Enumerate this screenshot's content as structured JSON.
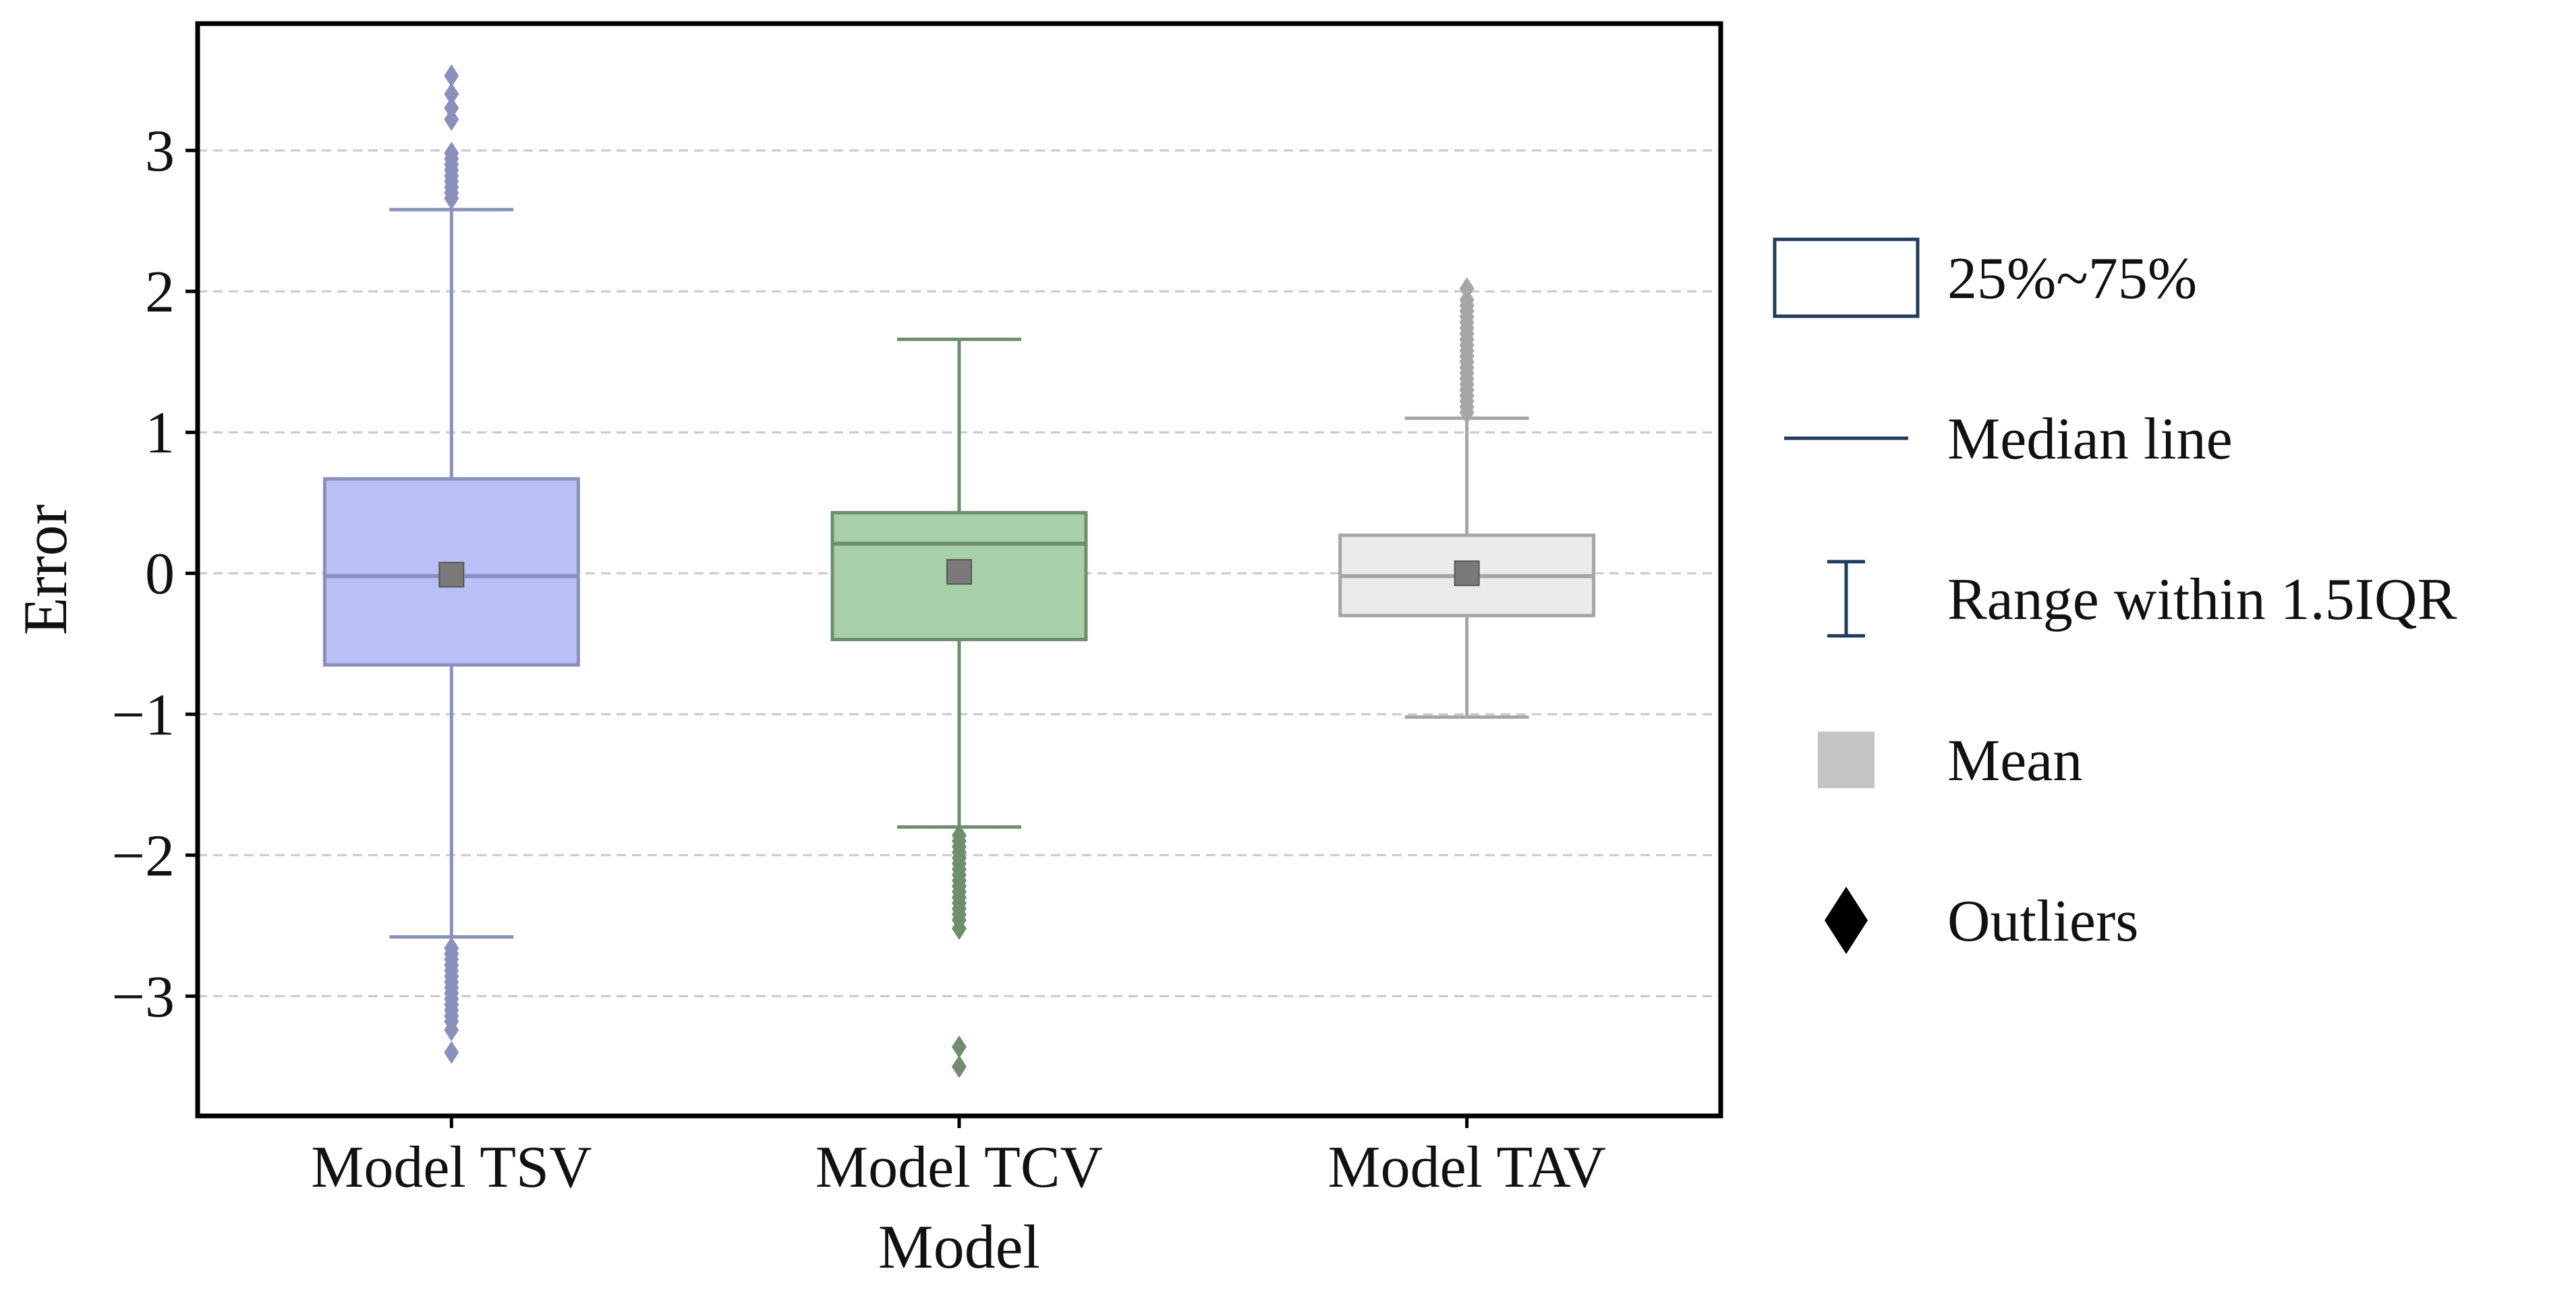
{
  "chart_data": {
    "type": "boxplot",
    "title": "",
    "xlabel": "Model",
    "ylabel": "Error",
    "ylim": [
      -3.85,
      3.9
    ],
    "yticks": [
      -3,
      -2,
      -1,
      0,
      1,
      2,
      3
    ],
    "ytick_labels": [
      "−3",
      "−2",
      "−1",
      "0",
      "1",
      "2",
      "3"
    ],
    "grid": {
      "y": true,
      "style": "dashed"
    },
    "categories": [
      "Model TSV",
      "Model TCV",
      "Model TAV"
    ],
    "series": [
      {
        "name": "Model TSV",
        "q1": -0.65,
        "median": -0.02,
        "q3": 0.67,
        "whisker_low": -2.58,
        "whisker_high": 2.58,
        "mean": -0.01,
        "fill": "#b8c0f5",
        "stroke": "#8a90bc",
        "outliers": [
          2.66,
          2.7,
          2.74,
          2.78,
          2.82,
          2.86,
          2.9,
          2.94,
          2.98,
          3.22,
          3.3,
          3.4,
          3.53,
          -2.66,
          -2.7,
          -2.74,
          -2.78,
          -2.82,
          -2.86,
          -2.9,
          -2.94,
          -2.98,
          -3.02,
          -3.06,
          -3.1,
          -3.14,
          -3.18,
          -3.24,
          -3.4
        ]
      },
      {
        "name": "Model TCV",
        "q1": -0.47,
        "median": 0.21,
        "q3": 0.43,
        "whisker_low": -1.8,
        "whisker_high": 1.66,
        "mean": 0.01,
        "fill": "#a8d0a8",
        "stroke": "#6e8e6e",
        "outliers": [
          -1.86,
          -1.9,
          -1.94,
          -1.98,
          -2.02,
          -2.06,
          -2.1,
          -2.14,
          -2.18,
          -2.22,
          -2.26,
          -2.3,
          -2.34,
          -2.38,
          -2.42,
          -2.46,
          -2.52,
          -3.36,
          -3.5
        ]
      },
      {
        "name": "Model TAV",
        "q1": -0.3,
        "median": -0.02,
        "q3": 0.27,
        "whisker_low": -1.02,
        "whisker_high": 1.1,
        "mean": 0.0,
        "fill": "#ebebeb",
        "stroke": "#a6a6a6",
        "outliers": [
          1.14,
          1.18,
          1.22,
          1.26,
          1.3,
          1.34,
          1.38,
          1.42,
          1.46,
          1.5,
          1.54,
          1.58,
          1.62,
          1.66,
          1.7,
          1.74,
          1.78,
          1.82,
          1.86,
          1.9,
          1.94,
          2.02
        ]
      }
    ],
    "mean_marker_color": "#7a7a7a",
    "legend": {
      "position": "right",
      "items": [
        {
          "symbol": "box",
          "label": "25%~75%"
        },
        {
          "symbol": "line",
          "label": "Median line"
        },
        {
          "symbol": "whisker",
          "label": "Range within 1.5IQR"
        },
        {
          "symbol": "square",
          "label": "Mean"
        },
        {
          "symbol": "diamond",
          "label": "Outliers"
        }
      ],
      "accent_color": "#1f3a5f",
      "mean_color": "#c4c4c4",
      "outlier_color": "#000000"
    }
  }
}
